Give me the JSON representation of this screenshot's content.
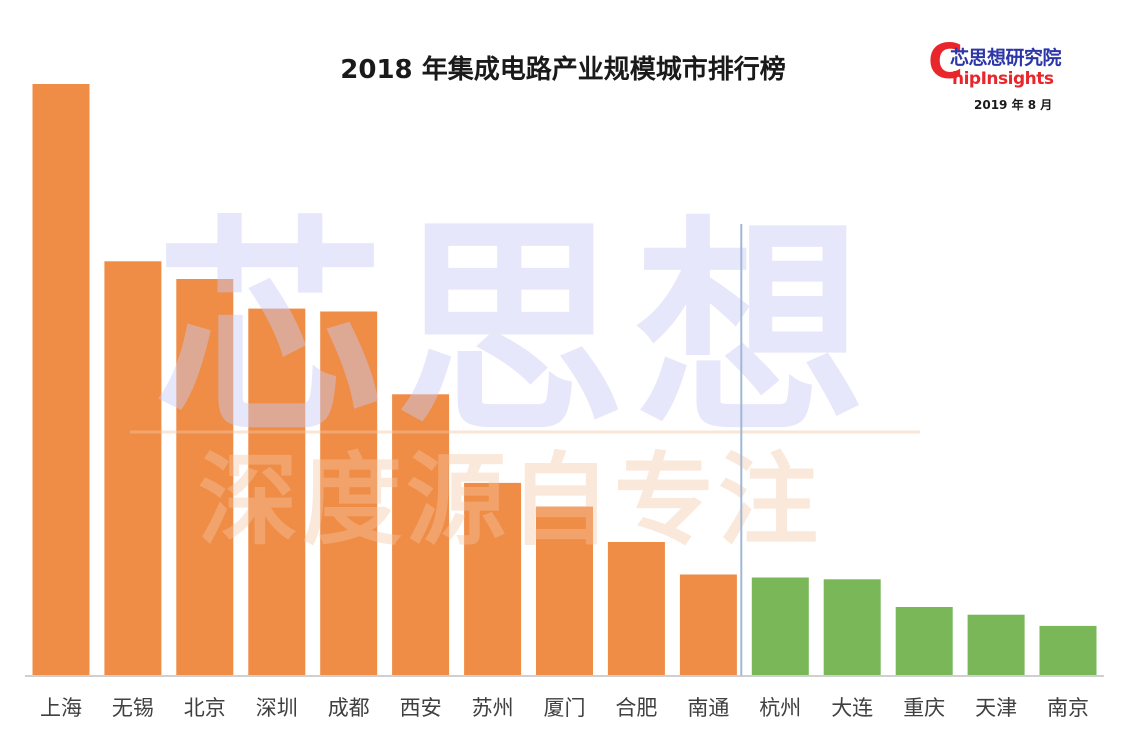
{
  "chart_data": {
    "type": "bar",
    "title": "2018 年集成电路产业规模城市排行榜",
    "categories": [
      "上海",
      "无锡",
      "北京",
      "深圳",
      "成都",
      "西安",
      "苏州",
      "厦门",
      "合肥",
      "南通",
      "杭州",
      "大连",
      "重庆",
      "天津",
      "南京"
    ],
    "values": [
      100,
      70,
      67,
      62,
      61.5,
      47.5,
      32.5,
      28.5,
      22.5,
      17,
      16.5,
      16.2,
      11.5,
      10.2,
      8.3
    ],
    "ylim": [
      0,
      100
    ],
    "grid": false,
    "legend": "none",
    "bar_colors": {
      "group1": "#ef8c46",
      "group2": "#7ab758"
    },
    "group1_count": 10,
    "divider_color": "#9fb8d6"
  },
  "logo": {
    "mark": "C",
    "name_cn": "芯思想研究院",
    "name_en": "hipInsights",
    "date": "2019 年 8 月"
  },
  "watermark": {
    "main": "芯思想",
    "sub": "深度源自专注"
  }
}
